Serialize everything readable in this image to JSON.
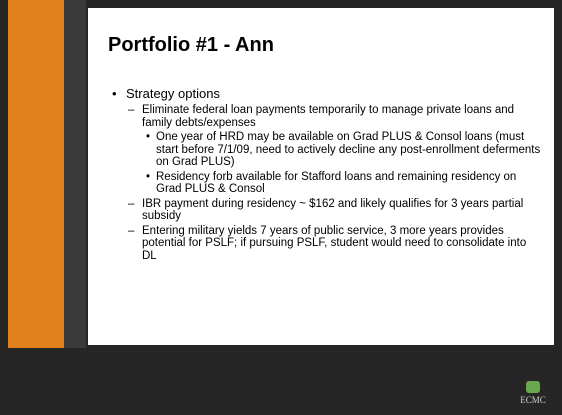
{
  "title": "Portfolio #1 - Ann",
  "items": [
    {
      "text": "Strategy options",
      "children": [
        {
          "text": "Eliminate federal loan payments temporarily to manage private loans and family debts/expenses",
          "children": [
            {
              "text": "One year of HRD may be available on Grad PLUS & Consol loans (must start before 7/1/09, need to actively decline any post-enrollment deferments on Grad PLUS)"
            },
            {
              "text": "Residency forb available for Stafford loans and remaining residency on Grad PLUS & Consol"
            }
          ]
        },
        {
          "text": "IBR payment during residency ~ $162 and likely qualifies for 3 years partial subsidy"
        },
        {
          "text": "Entering military yields 7 years of public service, 3 more years provides potential for PSLF; if pursuing PSLF, student would need to consolidate into DL"
        }
      ]
    }
  ],
  "logo": "ECMC"
}
